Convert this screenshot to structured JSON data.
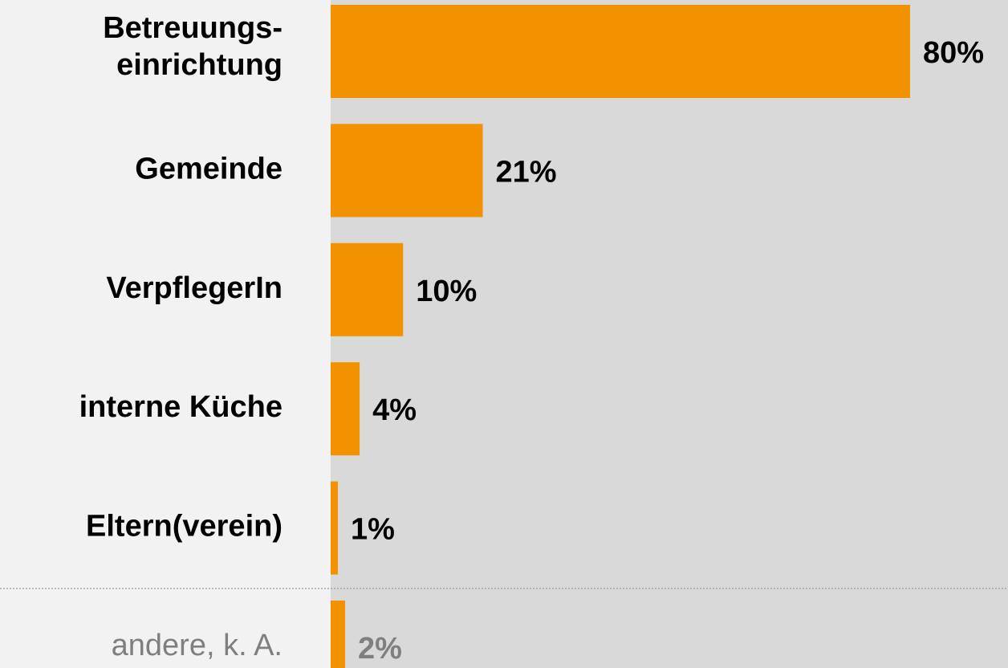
{
  "chart_data": {
    "type": "hbar",
    "categories": [
      "Betreuungs-\neinrichtung",
      "Gemeinde",
      "VerpflegerIn",
      "interne Küche",
      "Eltern(verein)",
      "andere, k. A."
    ],
    "values": [
      80,
      21,
      10,
      4,
      1,
      2
    ],
    "value_labels": [
      "80%",
      "21%",
      "10%",
      "4%",
      "1%",
      "2%"
    ],
    "color": "#f39200",
    "muted_from": 5,
    "muted_color": "#7f7f7f"
  }
}
